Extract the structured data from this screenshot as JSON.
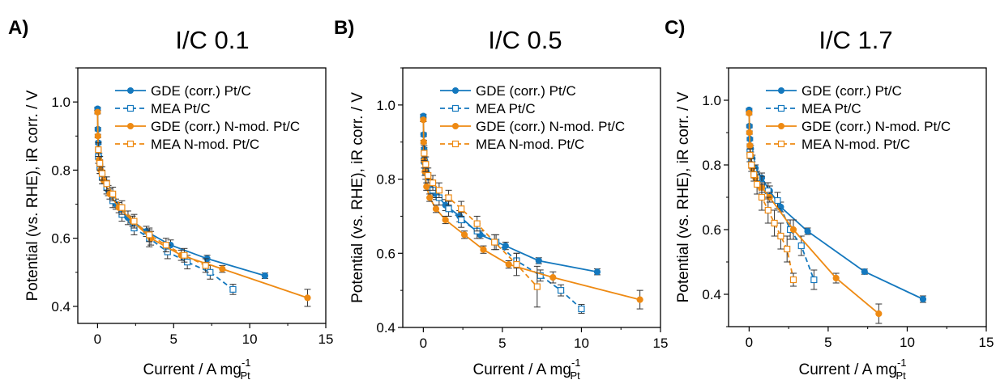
{
  "colors": {
    "blue": "#1478be",
    "orange": "#ee8a13"
  },
  "chart_data": [
    {
      "panel": "A)",
      "title": "I/C 0.1",
      "type": "line",
      "xlabel": "Current / A mg",
      "xlabel_sup": "-1",
      "xlabel_sub": "Pt",
      "ylabel": "Potential (vs. RHE), iR corr. / V",
      "xlim": [
        -1.3,
        15
      ],
      "ylim": [
        0.35,
        1.1
      ],
      "xticks": [
        0,
        5,
        10,
        15
      ],
      "yticks": [
        0.4,
        0.6,
        0.8,
        1.0
      ],
      "ytick_labels": [
        "0.4",
        "0.6",
        "0.8",
        "1.0"
      ],
      "legend_position": "top-right",
      "series": [
        {
          "name": "GDE (corr.) Pt/C",
          "color": "blue",
          "style": "solid",
          "marker": "filled",
          "x": [
            0,
            0.02,
            0.05,
            0.1,
            0.2,
            0.4,
            0.7,
            1.2,
            2.0,
            3.2,
            4.8,
            7.2,
            11.0
          ],
          "y": [
            0.98,
            0.92,
            0.88,
            0.84,
            0.8,
            0.77,
            0.74,
            0.7,
            0.66,
            0.62,
            0.58,
            0.54,
            0.49
          ],
          "err": [
            0.005,
            0.005,
            0.005,
            0.01,
            0.01,
            0.01,
            0.015,
            0.015,
            0.02,
            0.015,
            0.015,
            0.01,
            0.008
          ]
        },
        {
          "name": "MEA Pt/C",
          "color": "blue",
          "style": "dashed",
          "marker": "open",
          "x": [
            0.05,
            0.15,
            0.3,
            0.6,
            1.0,
            1.6,
            2.4,
            3.4,
            4.6,
            5.9,
            7.4,
            8.9
          ],
          "y": [
            0.84,
            0.81,
            0.78,
            0.75,
            0.71,
            0.67,
            0.63,
            0.6,
            0.56,
            0.53,
            0.5,
            0.45
          ],
          "err": [
            0.02,
            0.02,
            0.02,
            0.02,
            0.02,
            0.02,
            0.02,
            0.025,
            0.02,
            0.02,
            0.02,
            0.015
          ]
        },
        {
          "name": "GDE (corr.) N-mod. Pt/C",
          "color": "orange",
          "style": "solid",
          "marker": "filled",
          "x": [
            0,
            0.02,
            0.05,
            0.1,
            0.2,
            0.4,
            0.8,
            1.4,
            2.3,
            3.5,
            5.5,
            8.2,
            13.8
          ],
          "y": [
            0.97,
            0.9,
            0.86,
            0.83,
            0.8,
            0.77,
            0.73,
            0.69,
            0.65,
            0.6,
            0.55,
            0.51,
            0.425
          ],
          "err": [
            0.005,
            0.005,
            0.005,
            0.01,
            0.01,
            0.01,
            0.015,
            0.015,
            0.015,
            0.02,
            0.015,
            0.01,
            0.025
          ]
        },
        {
          "name": "MEA N-mod. Pt/C",
          "color": "orange",
          "style": "dashed",
          "marker": "open",
          "x": [
            0.05,
            0.15,
            0.3,
            0.6,
            1.0,
            1.6,
            2.4,
            3.4,
            4.5,
            5.7,
            7.1
          ],
          "y": [
            0.86,
            0.82,
            0.79,
            0.76,
            0.73,
            0.69,
            0.65,
            0.61,
            0.58,
            0.55,
            0.52
          ],
          "err": [
            0.02,
            0.02,
            0.02,
            0.02,
            0.02,
            0.02,
            0.02,
            0.02,
            0.02,
            0.02,
            0.02
          ]
        }
      ]
    },
    {
      "panel": "B)",
      "title": "I/C 0.5",
      "type": "line",
      "xlabel": "Current / A mg",
      "xlabel_sup": "-1",
      "xlabel_sub": "Pt",
      "ylabel": "Potential (vs. RHE), iR corr. / V",
      "xlim": [
        -1.3,
        15
      ],
      "ylim": [
        0.4,
        1.1
      ],
      "xticks": [
        0,
        5,
        10,
        15
      ],
      "yticks": [
        0.4,
        0.6,
        0.8,
        1.0
      ],
      "ytick_labels": [
        "0.4",
        "0.6",
        "0.8",
        "1.0"
      ],
      "legend_position": "top-right",
      "series": [
        {
          "name": "GDE (corr.) Pt/C",
          "color": "blue",
          "style": "solid",
          "marker": "filled",
          "x": [
            0,
            0.02,
            0.05,
            0.1,
            0.2,
            0.4,
            0.8,
            1.4,
            2.3,
            3.6,
            5.2,
            7.3,
            11.0
          ],
          "y": [
            0.97,
            0.92,
            0.88,
            0.85,
            0.82,
            0.79,
            0.76,
            0.73,
            0.7,
            0.65,
            0.62,
            0.58,
            0.55
          ],
          "err": [
            0.005,
            0.005,
            0.005,
            0.01,
            0.01,
            0.01,
            0.015,
            0.015,
            0.015,
            0.01,
            0.01,
            0.008,
            0.008
          ]
        },
        {
          "name": "MEA Pt/C",
          "color": "blue",
          "style": "dashed",
          "marker": "open",
          "x": [
            0.05,
            0.15,
            0.3,
            0.6,
            1.0,
            1.6,
            2.4,
            3.4,
            4.6,
            5.9,
            7.4,
            8.7,
            10.0
          ],
          "y": [
            0.85,
            0.82,
            0.79,
            0.77,
            0.75,
            0.72,
            0.69,
            0.66,
            0.63,
            0.58,
            0.54,
            0.5,
            0.45
          ],
          "err": [
            0.02,
            0.02,
            0.02,
            0.02,
            0.02,
            0.02,
            0.02,
            0.02,
            0.02,
            0.02,
            0.015,
            0.015,
            0.012
          ]
        },
        {
          "name": "GDE (corr.) N-mod. Pt/C",
          "color": "orange",
          "style": "solid",
          "marker": "filled",
          "x": [
            0,
            0.02,
            0.05,
            0.1,
            0.2,
            0.4,
            0.8,
            1.4,
            2.6,
            3.8,
            5.4,
            8.2,
            13.7
          ],
          "y": [
            0.96,
            0.9,
            0.85,
            0.82,
            0.78,
            0.75,
            0.72,
            0.69,
            0.65,
            0.61,
            0.57,
            0.535,
            0.475
          ],
          "err": [
            0.005,
            0.005,
            0.005,
            0.01,
            0.01,
            0.01,
            0.01,
            0.01,
            0.01,
            0.01,
            0.01,
            0.015,
            0.025
          ]
        },
        {
          "name": "MEA N-mod. Pt/C",
          "color": "orange",
          "style": "dashed",
          "marker": "open",
          "x": [
            0.05,
            0.15,
            0.3,
            0.6,
            1.0,
            1.6,
            2.4,
            3.4,
            4.5,
            5.9,
            7.2
          ],
          "y": [
            0.87,
            0.84,
            0.81,
            0.79,
            0.77,
            0.75,
            0.72,
            0.68,
            0.63,
            0.57,
            0.51
          ],
          "err": [
            0.02,
            0.02,
            0.02,
            0.02,
            0.02,
            0.02,
            0.02,
            0.02,
            0.02,
            0.03,
            0.055
          ]
        }
      ]
    },
    {
      "panel": "C)",
      "title": "I/C 1.7",
      "type": "line",
      "xlabel": "Current / A mg",
      "xlabel_sup": "-1",
      "xlabel_sub": "Pt",
      "ylabel": "Potential (vs. RHE), iR corr. / V",
      "xlim": [
        -1.3,
        15
      ],
      "ylim": [
        0.3,
        1.1
      ],
      "xticks": [
        0,
        5,
        10,
        15
      ],
      "yticks": [
        0.4,
        0.6,
        0.8,
        1.0
      ],
      "ytick_labels": [
        "0.4",
        "0.6",
        "0.8",
        "1.0"
      ],
      "legend_position": "top-right",
      "series": [
        {
          "name": "GDE (corr.) Pt/C",
          "color": "blue",
          "style": "solid",
          "marker": "filled",
          "x": [
            0,
            0.02,
            0.05,
            0.1,
            0.2,
            0.4,
            0.8,
            1.3,
            2.0,
            3.7,
            7.3,
            11.0
          ],
          "y": [
            0.97,
            0.92,
            0.88,
            0.85,
            0.82,
            0.79,
            0.76,
            0.72,
            0.67,
            0.595,
            0.47,
            0.385
          ],
          "err": [
            0.005,
            0.005,
            0.005,
            0.01,
            0.01,
            0.01,
            0.015,
            0.015,
            0.015,
            0.01,
            0.008,
            0.01
          ]
        },
        {
          "name": "MEA Pt/C",
          "color": "blue",
          "style": "dashed",
          "marker": "open",
          "x": [
            0.05,
            0.15,
            0.3,
            0.5,
            0.8,
            1.2,
            1.8,
            2.6,
            3.3,
            4.1
          ],
          "y": [
            0.84,
            0.81,
            0.78,
            0.76,
            0.74,
            0.72,
            0.69,
            0.6,
            0.55,
            0.445
          ],
          "err": [
            0.02,
            0.02,
            0.02,
            0.02,
            0.025,
            0.025,
            0.025,
            0.03,
            0.03,
            0.03
          ]
        },
        {
          "name": "GDE (corr.) N-mod. Pt/C",
          "color": "orange",
          "style": "solid",
          "marker": "filled",
          "x": [
            0,
            0.02,
            0.05,
            0.1,
            0.2,
            0.4,
            0.8,
            1.3,
            2.8,
            5.5,
            8.2
          ],
          "y": [
            0.96,
            0.9,
            0.86,
            0.83,
            0.79,
            0.76,
            0.73,
            0.7,
            0.6,
            0.45,
            0.34
          ],
          "err": [
            0.005,
            0.005,
            0.005,
            0.01,
            0.01,
            0.01,
            0.015,
            0.015,
            0.03,
            0.015,
            0.03
          ]
        },
        {
          "name": "MEA N-mod. Pt/C",
          "color": "orange",
          "style": "dashed",
          "marker": "open",
          "x": [
            0.05,
            0.15,
            0.3,
            0.5,
            0.8,
            1.2,
            1.6,
            2.0,
            2.4,
            2.8
          ],
          "y": [
            0.83,
            0.8,
            0.77,
            0.74,
            0.7,
            0.66,
            0.62,
            0.58,
            0.54,
            0.445
          ],
          "err": [
            0.02,
            0.02,
            0.02,
            0.03,
            0.04,
            0.04,
            0.04,
            0.04,
            0.04,
            0.02
          ]
        }
      ]
    }
  ]
}
